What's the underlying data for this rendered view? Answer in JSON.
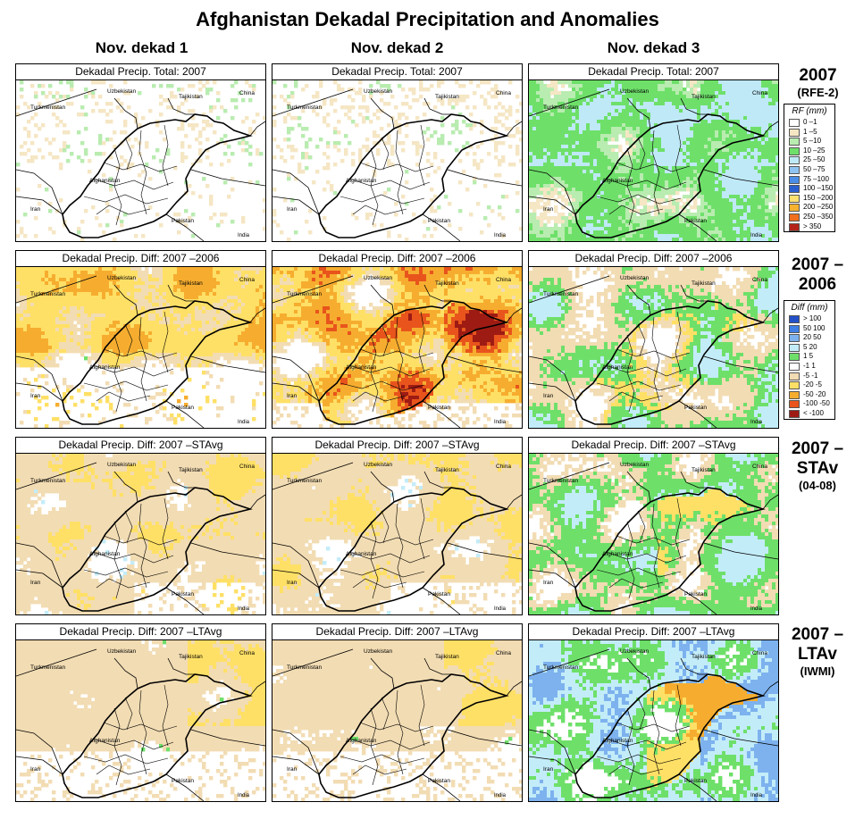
{
  "title": "Afghanistan Dekadal Precipitation and Anomalies",
  "columns": [
    "Nov. dekad 1",
    "Nov. dekad 2",
    "Nov. dekad 3"
  ],
  "row_labels": [
    {
      "main": "2007",
      "sub": "(RFE-2)"
    },
    {
      "main": "2007 –2006",
      "sub": ""
    },
    {
      "main": "2007 –STAv",
      "sub": "(04-08)"
    },
    {
      "main": "2007 –LTAv",
      "sub": "(IWMI)"
    }
  ],
  "panel_titles": [
    "Dekadal Precip. Total: 2007",
    "Dekadal Precip. Diff:  2007 –2006",
    "Dekadal Precip. Diff:  2007 –STAvg",
    "Dekadal Precip. Diff:  2007 –LTAvg"
  ],
  "map_labels": [
    "Uzbekistan",
    "Tajikistan",
    "China",
    "Turkmenistan",
    "Afghanistan",
    "Iran",
    "Pakistan",
    "India"
  ],
  "legend_rf": {
    "title": "RF (mm)",
    "items": [
      {
        "label": "0 –1",
        "color": "#ffffff"
      },
      {
        "label": "1 –5",
        "color": "#f5e6c4"
      },
      {
        "label": "5 –10",
        "color": "#b9ecb0"
      },
      {
        "label": "10 –25",
        "color": "#6ee06a"
      },
      {
        "label": "25 –50",
        "color": "#bfe9f7"
      },
      {
        "label": "50 –75",
        "color": "#8fc4f2"
      },
      {
        "label": "75 –100",
        "color": "#4a8ee8"
      },
      {
        "label": "100 –150",
        "color": "#2a5fcf"
      },
      {
        "label": "150 –200",
        "color": "#ffe070"
      },
      {
        "label": "200 –250",
        "color": "#f7b230"
      },
      {
        "label": "250 –350",
        "color": "#ef6f1e"
      },
      {
        "label": "> 350",
        "color": "#b42318"
      }
    ]
  },
  "legend_diff": {
    "title": "Diff (mm)",
    "items": [
      {
        "label": "> 100",
        "color": "#2450c8"
      },
      {
        "label": "50  100",
        "color": "#3f7fe6"
      },
      {
        "label": "20  50",
        "color": "#7db2ee"
      },
      {
        "label": "5  20",
        "color": "#c3ecf9"
      },
      {
        "label": "1  5",
        "color": "#6ee06a"
      },
      {
        "label": "-1  1",
        "color": "#ffffff"
      },
      {
        "label": "-5  -1",
        "color": "#f2dcb3"
      },
      {
        "label": "-20  -5",
        "color": "#ffe066"
      },
      {
        "label": "-50  -20",
        "color": "#f6ad2f"
      },
      {
        "label": "-100  -50",
        "color": "#e8541c"
      },
      {
        "label": "< -100",
        "color": "#9e1b14"
      }
    ]
  }
}
